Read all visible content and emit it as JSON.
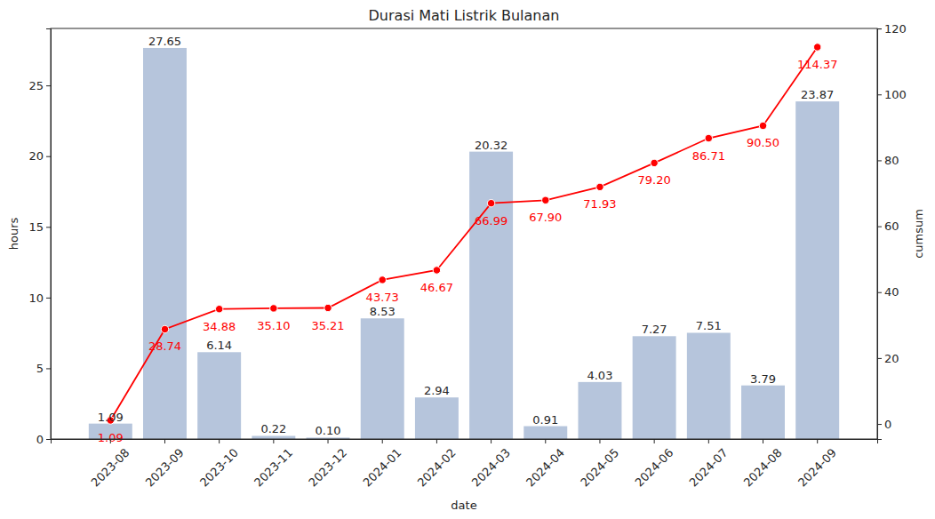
{
  "chart_data": {
    "type": "bar",
    "title": "Durasi Mati Listrik Bulanan",
    "x_label": "date",
    "y_label": "hours",
    "y2_label": "cumsum",
    "categories": [
      "2023-08",
      "2023-09",
      "2023-10",
      "2023-11",
      "2023-12",
      "2024-01",
      "2024-02",
      "2024-03",
      "2024-04",
      "2024-05",
      "2024-06",
      "2024-07",
      "2024-08",
      "2024-09"
    ],
    "series": [
      {
        "type": "bar",
        "color": "#b6c5dc",
        "values": [
          1.09,
          27.65,
          6.14,
          0.22,
          0.1,
          8.53,
          2.94,
          20.32,
          0.91,
          4.03,
          7.27,
          7.51,
          3.79,
          23.87
        ],
        "value_labels": [
          "1.09",
          "27.65",
          "6.14",
          "0.22",
          "0.10",
          "8.53",
          "2.94",
          "20.32",
          "0.91",
          "4.03",
          "7.27",
          "7.51",
          "3.79",
          "23.87"
        ]
      },
      {
        "type": "line",
        "axis": "y2",
        "color": "#ff0000",
        "marker": "circle",
        "line_style": "solid",
        "values": [
          1.09,
          28.74,
          34.88,
          35.1,
          35.21,
          43.73,
          46.67,
          66.99,
          67.9,
          71.93,
          79.2,
          86.71,
          90.5,
          114.37
        ],
        "value_labels": [
          "1.09",
          "28.74",
          "34.88",
          "35.10",
          "35.21",
          "43.73",
          "46.67",
          "66.99",
          "67.90",
          "71.93",
          "79.20",
          "86.71",
          "90.50",
          "114.37"
        ]
      }
    ],
    "ylim": [
      0,
      29.03
    ],
    "yticks": [
      0,
      5,
      10,
      15,
      20,
      25
    ],
    "y2lim": [
      -4.57,
      120.03
    ],
    "y2ticks": [
      0,
      20,
      40,
      60,
      80,
      100,
      120
    ],
    "grid": false,
    "data_labels": true
  }
}
